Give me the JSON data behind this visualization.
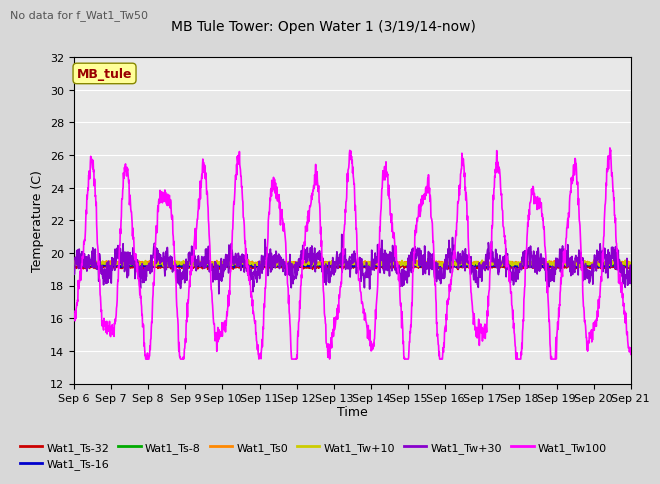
{
  "title": "MB Tule Tower: Open Water 1 (3/19/14-now)",
  "subtitle": "No data for f_Wat1_Tw50",
  "ylabel": "Temperature (C)",
  "xlabel": "Time",
  "ylim": [
    12,
    32
  ],
  "yticks": [
    12,
    14,
    16,
    18,
    20,
    22,
    24,
    26,
    28,
    30,
    32
  ],
  "bg_color": "#e0e0e0",
  "plot_bg": "#e8e8e8",
  "series": {
    "Wat1_Ts-32": {
      "color": "#cc0000",
      "lw": 1.2,
      "zorder": 3
    },
    "Wat1_Ts-16": {
      "color": "#0000cc",
      "lw": 1.2,
      "zorder": 3
    },
    "Wat1_Ts-8": {
      "color": "#00aa00",
      "lw": 1.2,
      "zorder": 3
    },
    "Wat1_Ts0": {
      "color": "#ff8800",
      "lw": 1.2,
      "zorder": 3
    },
    "Wat1_Tw+10": {
      "color": "#cccc00",
      "lw": 1.2,
      "zorder": 3
    },
    "Wat1_Tw+30": {
      "color": "#8800cc",
      "lw": 1.2,
      "zorder": 4
    },
    "Wat1_Tw100": {
      "color": "#ff00ff",
      "lw": 1.2,
      "zorder": 5
    }
  },
  "xtick_labels": [
    "Sep 6",
    "Sep 7",
    "Sep 8",
    "Sep 9",
    "Sep 10",
    "Sep 11",
    "Sep 12",
    "Sep 13",
    "Sep 14",
    "Sep 15",
    "Sep 16",
    "Sep 17",
    "Sep 18",
    "Sep 19",
    "Sep 20",
    "Sep 21"
  ],
  "legend_box_color": "#ffff99",
  "legend_box_text": "MB_tule",
  "legend_box_text_color": "#990000"
}
